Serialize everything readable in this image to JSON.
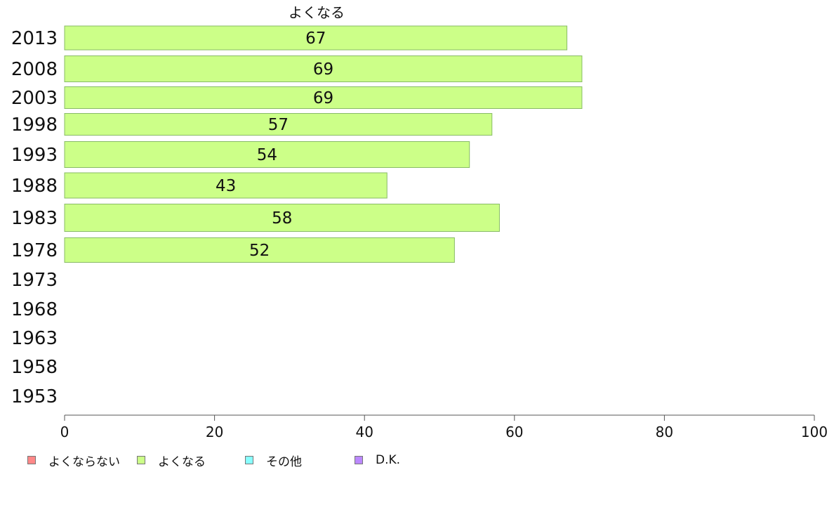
{
  "chart_data": {
    "type": "bar",
    "orientation": "horizontal",
    "series_title": "よくなる",
    "categories": [
      "2013",
      "2008",
      "2003",
      "1998",
      "1993",
      "1988",
      "1983",
      "1978",
      "1973",
      "1968",
      "1963",
      "1958",
      "1953"
    ],
    "series": [
      {
        "name": "よくなる",
        "color": "#ccff88",
        "values": [
          67,
          69,
          69,
          57,
          54,
          43,
          58,
          52,
          null,
          null,
          null,
          null,
          null
        ]
      }
    ],
    "xlim": [
      0,
      100
    ],
    "xticks": [
      "0",
      "20",
      "40",
      "60",
      "80",
      "100"
    ],
    "grid": false,
    "legend": {
      "placement": "bottom-left",
      "entries": [
        {
          "label": "よくならない",
          "color": "#ff8888"
        },
        {
          "label": "よくなる",
          "color": "#ccff88"
        },
        {
          "label": "その他",
          "color": "#88ffff"
        },
        {
          "label": "D.K.",
          "color": "#bb88ff"
        }
      ]
    }
  }
}
